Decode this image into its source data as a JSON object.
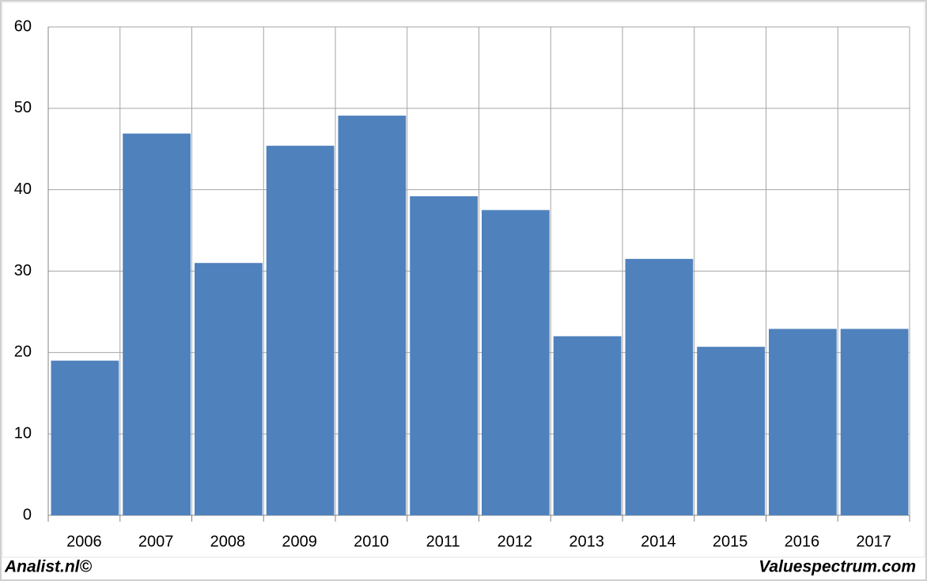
{
  "chart_data": {
    "type": "bar",
    "categories": [
      "2006",
      "2007",
      "2008",
      "2009",
      "2010",
      "2011",
      "2012",
      "2013",
      "2014",
      "2015",
      "2016",
      "2017"
    ],
    "values": [
      19,
      46.9,
      31,
      45.4,
      49.1,
      39.2,
      37.5,
      22,
      31.5,
      20.7,
      22.9,
      22.9
    ],
    "color": "#4f81bd",
    "ylim": [
      0,
      60
    ],
    "yticks": [
      0,
      10,
      20,
      30,
      40,
      50,
      60
    ],
    "grid": true
  },
  "footer": {
    "left": "Analist.nl©",
    "right": "Valuespectrum.com"
  }
}
